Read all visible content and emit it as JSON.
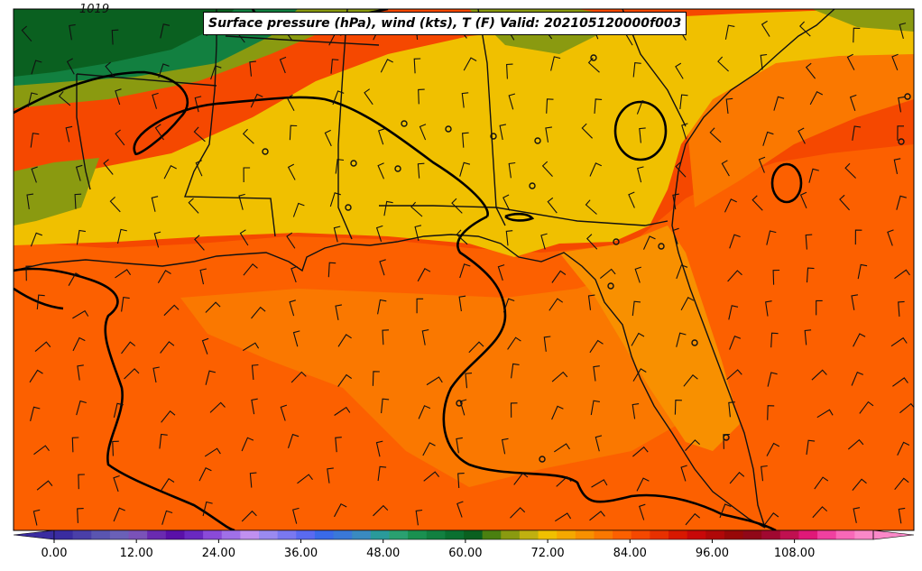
{
  "title": "Surface pressure (hPa), wind (kts), T (F) Valid: 202105120000f003",
  "isobar_labels": [
    "1019"
  ],
  "colorbar": {
    "min": 0,
    "max": 120,
    "tick_labels": [
      "0.00",
      "12.00",
      "24.00",
      "36.00",
      "48.00",
      "60.00",
      "72.00",
      "84.00",
      "96.00",
      "108.00"
    ],
    "tick_values": [
      0,
      12,
      24,
      36,
      48,
      60,
      72,
      84,
      96,
      108
    ],
    "extend": "both",
    "colors": [
      "#3a2ca0",
      "#4a3fa8",
      "#5a55b0",
      "#6a60b8",
      "#7a52b8",
      "#6a2ab0",
      "#5a10a8",
      "#6a28c0",
      "#8a4ad8",
      "#a070e8",
      "#c090f0",
      "#9a8af0",
      "#7a78f0",
      "#5a6af0",
      "#3a6ae8",
      "#3a78d8",
      "#3a8ac0",
      "#2a9a9a",
      "#2aa070",
      "#1a9050",
      "#128040",
      "#0a7030",
      "#0a6020",
      "#4a8010",
      "#8a9a10",
      "#c0b010",
      "#f0c000",
      "#f5a800",
      "#f89000",
      "#fa7800",
      "#fc6000",
      "#f54800",
      "#e83000",
      "#d81800",
      "#c80808",
      "#b00808",
      "#980808",
      "#900818",
      "#a00830",
      "#c01050",
      "#e01878",
      "#f040a0",
      "#f868b8",
      "#fa88c8"
    ]
  },
  "colors": {
    "deep_green": "#0a6020",
    "green": "#128040",
    "olive": "#8a9a10",
    "yellow": "#f0c000",
    "orange_light": "#f89000",
    "orange": "#fa7800",
    "orange_dark": "#fc6000",
    "red_orange": "#f54800"
  }
}
